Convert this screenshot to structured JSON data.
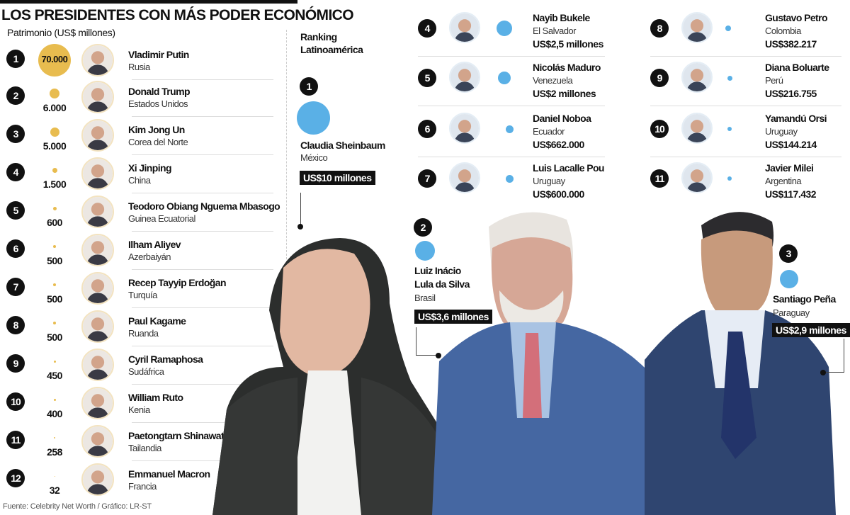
{
  "header": {
    "title": "LOS PRESIDENTES CON MÁS PODER ECONÓMICO",
    "subtitle": "Patrimonio (US$ millones)"
  },
  "world_ranking": [
    {
      "rank": "1",
      "name": "Vladimir Putin",
      "country": "Rusia",
      "value": "70.000"
    },
    {
      "rank": "2",
      "name": "Donald Trump",
      "country": "Estados Unidos",
      "value": "6.000"
    },
    {
      "rank": "3",
      "name": "Kim Jong Un",
      "country": "Corea del Norte",
      "value": "5.000"
    },
    {
      "rank": "4",
      "name": "Xi Jinping",
      "country": "China",
      "value": "1.500"
    },
    {
      "rank": "5",
      "name": "Teodoro Obiang Nguema Mbasogo",
      "country": "Guinea Ecuatorial",
      "value": "600"
    },
    {
      "rank": "6",
      "name": "Ilham Aliyev",
      "country": "Azerbaiyán",
      "value": "500"
    },
    {
      "rank": "7",
      "name": "Recep Tayyip Erdoğan",
      "country": "Turquía",
      "value": "500"
    },
    {
      "rank": "8",
      "name": "Paul Kagame",
      "country": "Ruanda",
      "value": "500"
    },
    {
      "rank": "9",
      "name": "Cyril Ramaphosa",
      "country": "Sudáfrica",
      "value": "450"
    },
    {
      "rank": "10",
      "name": "William Ruto",
      "country": "Kenia",
      "value": "400"
    },
    {
      "rank": "11",
      "name": "Paetongtarn Shinawatra",
      "country": "Tailandia",
      "value": "258"
    },
    {
      "rank": "12",
      "name": "Emmanuel Macron",
      "country": "Francia",
      "value": "32"
    }
  ],
  "latam": {
    "heading_line1": "Ranking",
    "heading_line2": "Latinoamérica",
    "featured": [
      {
        "rank": "1",
        "name": "Claudia Sheinbaum",
        "name2": "",
        "country": "México",
        "value": "US$10 millones"
      },
      {
        "rank": "2",
        "name": "Luiz Inácio",
        "name2": "Lula da Silva",
        "country": "Brasil",
        "value": "US$3,6 millones"
      },
      {
        "rank": "3",
        "name": "Santiago Peña",
        "name2": "",
        "country": "Paraguay",
        "value": "US$2,9 millones"
      }
    ],
    "list": [
      {
        "rank": "4",
        "name": "Nayib Bukele",
        "country": "El Salvador",
        "value": "US$2,5 millones"
      },
      {
        "rank": "5",
        "name": "Nicolás Maduro",
        "country": "Venezuela",
        "value": "US$2 millones"
      },
      {
        "rank": "6",
        "name": "Daniel Noboa",
        "country": "Ecuador",
        "value": "US$662.000"
      },
      {
        "rank": "7",
        "name": "Luis Lacalle Pou",
        "country": "Uruguay",
        "value": "US$600.000"
      },
      {
        "rank": "8",
        "name": "Gustavo Petro",
        "country": "Colombia",
        "value": "US$382.217"
      },
      {
        "rank": "9",
        "name": "Diana Boluarte",
        "country": "Perú",
        "value": "US$216.755"
      },
      {
        "rank": "10",
        "name": "Yamandú Orsi",
        "country": "Uruguay",
        "value": "US$144.214"
      },
      {
        "rank": "11",
        "name": "Javier Milei",
        "country": "Argentina",
        "value": "US$117.432"
      }
    ]
  },
  "footer": {
    "source": "Fuente: Celebrity Net Worth / Gráfico: LR-ST"
  },
  "colors": {
    "world_bubble": "#e8bc4f",
    "latam_bubble": "#5ab0e6",
    "badge": "#111111"
  },
  "chart_data": [
    {
      "type": "bubble",
      "title": "LOS PRESIDENTES CON MÁS PODER ECONÓMICO",
      "subtitle": "Patrimonio (US$ millones)",
      "categories": [
        "Vladimir Putin",
        "Donald Trump",
        "Kim Jong Un",
        "Xi Jinping",
        "Teodoro Obiang Nguema Mbasogo",
        "Ilham Aliyev",
        "Recep Tayyip Erdoğan",
        "Paul Kagame",
        "Cyril Ramaphosa",
        "William Ruto",
        "Paetongtarn Shinawatra",
        "Emmanuel Macron"
      ],
      "countries": [
        "Rusia",
        "Estados Unidos",
        "Corea del Norte",
        "China",
        "Guinea Ecuatorial",
        "Azerbaiyán",
        "Turquía",
        "Ruanda",
        "Sudáfrica",
        "Kenia",
        "Tailandia",
        "Francia"
      ],
      "values": [
        70000,
        6000,
        5000,
        1500,
        600,
        500,
        500,
        500,
        450,
        400,
        258,
        32
      ],
      "unit": "US$ millones"
    },
    {
      "type": "bubble",
      "title": "Ranking Latinoamérica",
      "categories": [
        "Claudia Sheinbaum",
        "Luiz Inácio Lula da Silva",
        "Santiago Peña",
        "Nayib Bukele",
        "Nicolás Maduro",
        "Daniel Noboa",
        "Luis Lacalle Pou",
        "Gustavo Petro",
        "Diana Boluarte",
        "Yamandú Orsi",
        "Javier Milei"
      ],
      "countries": [
        "México",
        "Brasil",
        "Paraguay",
        "El Salvador",
        "Venezuela",
        "Ecuador",
        "Uruguay",
        "Colombia",
        "Perú",
        "Uruguay",
        "Argentina"
      ],
      "values": [
        10000000,
        3600000,
        2900000,
        2500000,
        2000000,
        662000,
        600000,
        382217,
        216755,
        144214,
        117432
      ],
      "unit": "US$"
    }
  ]
}
